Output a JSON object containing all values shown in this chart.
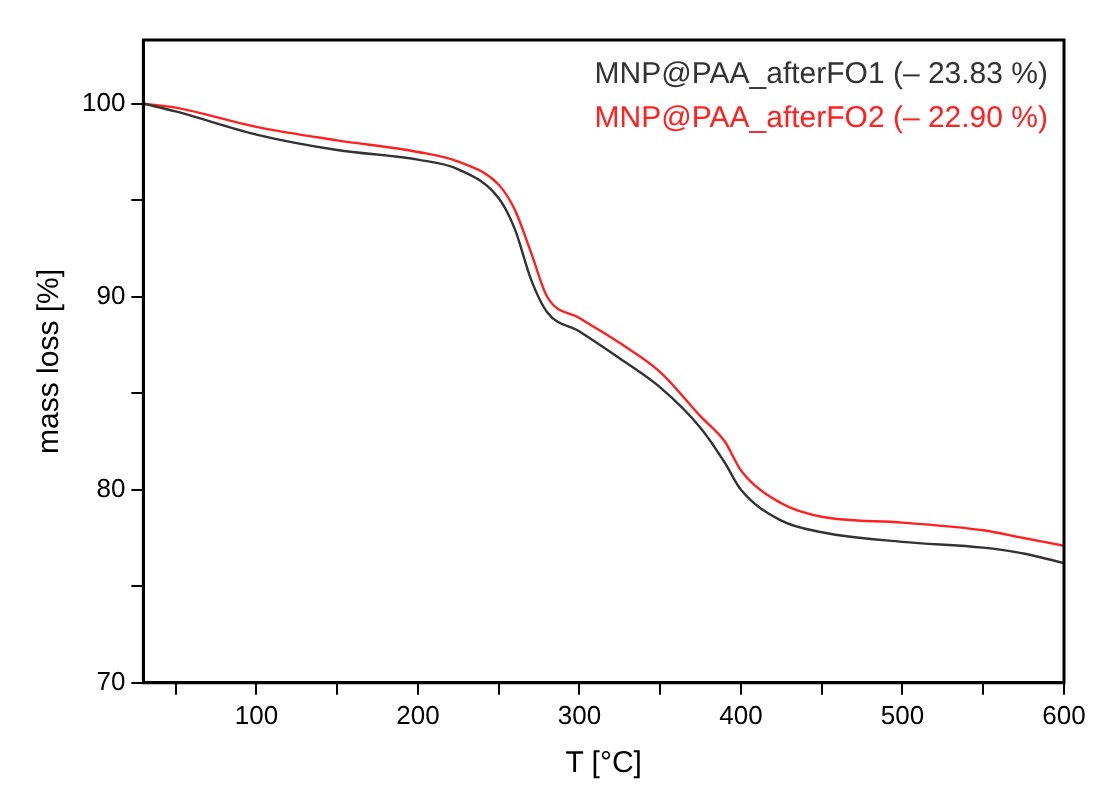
{
  "chart_data": {
    "type": "line",
    "xlabel": "T [°C]",
    "ylabel": "mass loss [%]",
    "x": [
      30,
      50,
      100,
      150,
      200,
      225,
      250,
      260,
      270,
      280,
      300,
      325,
      350,
      375,
      390,
      400,
      425,
      450,
      500,
      550,
      575,
      600
    ],
    "series": [
      {
        "name": "MNP@PAA_afterFO1 (– 23.83 %)",
        "color": "#333333",
        "values": [
          100,
          99.6,
          98.4,
          97.6,
          97.1,
          96.6,
          95.1,
          93.5,
          90.9,
          89.2,
          88.2,
          86.8,
          85.3,
          83.2,
          81.4,
          80.0,
          78.4,
          77.8,
          77.3,
          77.0,
          76.7,
          76.2
        ]
      },
      {
        "name": "MNP@PAA_afterFO2 (– 22.90 %)",
        "color": "#ff2020",
        "values": [
          100,
          99.8,
          98.8,
          98.1,
          97.5,
          97.0,
          95.8,
          94.5,
          92.3,
          90.0,
          88.9,
          87.6,
          86.1,
          83.8,
          82.5,
          81.0,
          79.3,
          78.6,
          78.3,
          77.9,
          77.5,
          77.1
        ]
      }
    ],
    "xlim": [
      30,
      600
    ],
    "xticks": [
      {
        "value": 50,
        "label": null
      },
      100,
      {
        "value": 150,
        "label": null
      },
      200,
      {
        "value": 250,
        "label": null
      },
      300,
      {
        "value": 350,
        "label": null
      },
      400,
      {
        "value": 450,
        "label": null
      },
      500,
      {
        "value": 550,
        "label": null
      },
      600
    ],
    "ylim": [
      70,
      103.3
    ],
    "yticks": [
      70,
      {
        "value": 75,
        "label": null
      },
      80,
      {
        "value": 85,
        "label": null
      },
      90,
      {
        "value": 95,
        "label": null
      },
      100
    ],
    "grid": false,
    "legend": "top right",
    "marker": "none",
    "line_style": "solid"
  }
}
